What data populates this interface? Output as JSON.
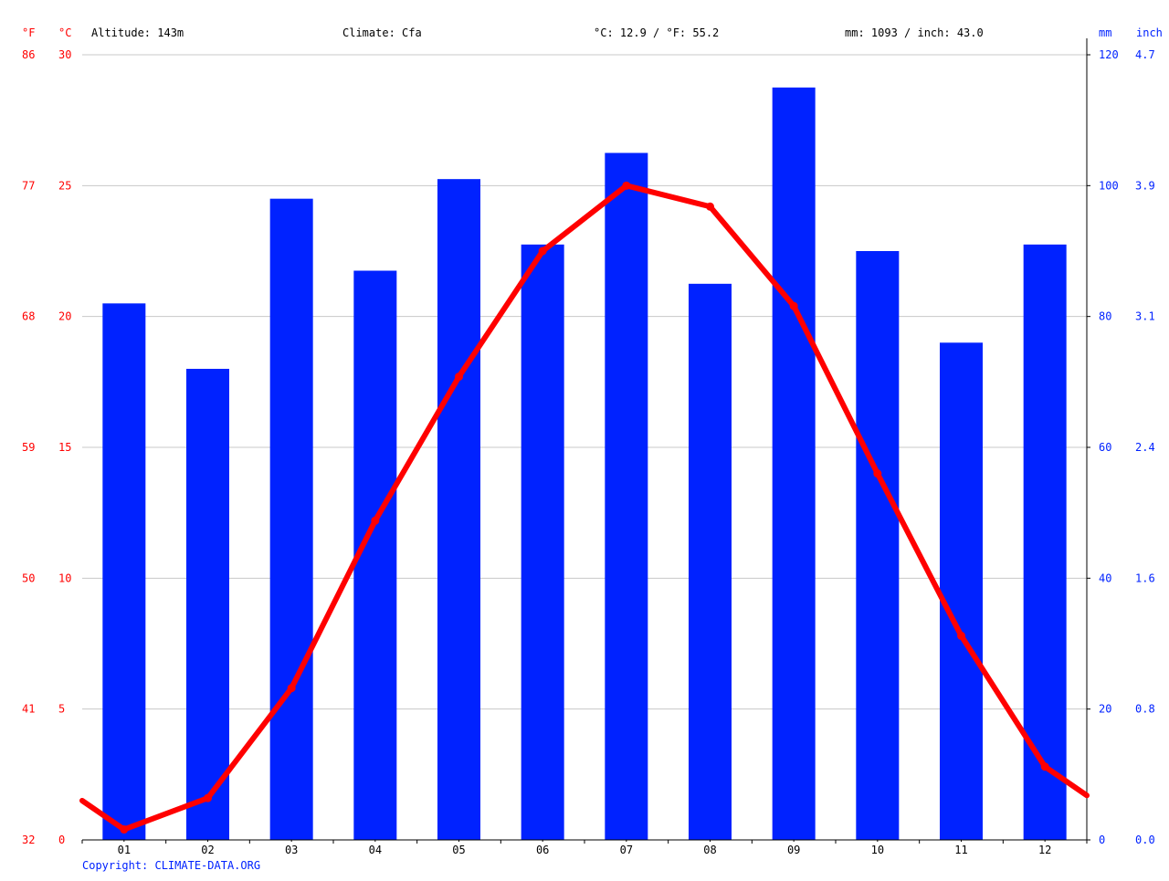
{
  "header": {
    "unit_f": "°F",
    "unit_c": "°C",
    "altitude": "Altitude: 143m",
    "climate": "Climate: Cfa",
    "avg_temp": "°C: 12.9 / °F: 55.2",
    "precip_total": "mm: 1093 / inch: 43.0",
    "unit_mm": "mm",
    "unit_inch": "inch"
  },
  "footer": {
    "copyright": "Copyright: CLIMATE-DATA.ORG"
  },
  "colors": {
    "temperature": "#ff0000",
    "precipitation": "#0022ff",
    "grid": "#c8c8c8",
    "axis": "#000000"
  },
  "chart_data": {
    "type": "bar+line",
    "categories": [
      "01",
      "02",
      "03",
      "04",
      "05",
      "06",
      "07",
      "08",
      "09",
      "10",
      "11",
      "12"
    ],
    "series": [
      {
        "type": "bar",
        "axis": "right",
        "values": [
          82,
          72,
          98,
          87,
          101,
          91,
          105,
          85,
          115,
          90,
          76,
          91
        ]
      },
      {
        "type": "line",
        "axis": "left",
        "values": [
          0.4,
          1.6,
          5.8,
          12.2,
          17.7,
          22.5,
          25.0,
          24.2,
          20.4,
          14.0,
          7.8,
          2.8
        ],
        "edge_values": [
          1.5,
          1.7
        ]
      }
    ],
    "ylim_left_c": [
      0,
      30
    ],
    "yticks_left_c": [
      "0",
      "5",
      "10",
      "15",
      "20",
      "25",
      "30"
    ],
    "yticks_left_f": [
      "32",
      "41",
      "50",
      "59",
      "68",
      "77",
      "86"
    ],
    "ylim_right_mm": [
      0,
      120
    ],
    "yticks_right_mm": [
      "0",
      "20",
      "40",
      "60",
      "80",
      "100",
      "120"
    ],
    "yticks_right_inch": [
      "0.0",
      "0.8",
      "1.6",
      "2.4",
      "3.1",
      "3.9",
      "4.7"
    ],
    "grid": true
  }
}
